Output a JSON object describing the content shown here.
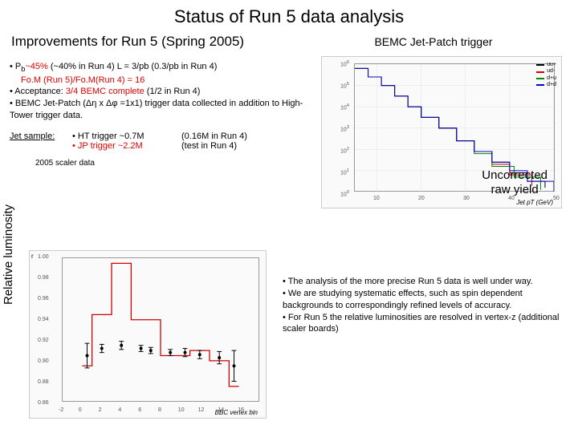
{
  "title": "Status of Run 5 data analysis",
  "subtitle": "Improvements for Run 5 (Spring 2005)",
  "bemc_title": "BEMC Jet-Patch trigger",
  "bullet1a": "• P",
  "bullet1b": "~45%",
  "bullet1c": "(~40% in Run 4)  L = 3/pb   (0.3/pb in Run 4)",
  "bullet1d": "Fo.M (Run 5)/Fo.M(Run 4) = 16",
  "bullet2a": "• Acceptance:",
  "bullet2b": "3/4 BEMC complete",
  "bullet2c": "(1/2 in Run 4)",
  "bullet3": "• BEMC Jet-Patch (Δη x Δφ =1x1) trigger data collected in addition to High-Tower trigger data.",
  "jet_label": "Jet sample:",
  "ht_trig": "• HT trigger ~0.7M",
  "ht_run4": "(0.16M in Run 4)",
  "jp_trig": "• JP trigger  ~2.2M",
  "jp_run4": "(test in Run 4)",
  "scaler_label": "2005 scaler data",
  "ylabel": "Relative luminosity",
  "raw_yield_l1": "Uncorrected",
  "raw_yield_l2": "raw yield",
  "rb1": "• The analysis of the more precise Run 5 data  is well under way.",
  "rb2": "• We are studying systematic effects, such as spin dependent backgrounds to correspondingly refined levels of accuracy.",
  "rb3": "• For Run 5 the relative luminosities are resolved in vertex-z (additional scaler boards)",
  "chart1": {
    "type": "line-log",
    "xlabel": "Jet pT (GeV)",
    "xmin": 5,
    "xmax": 50,
    "ymin_exp": 0,
    "ymax_exp": 6,
    "series": [
      {
        "name": "uu+",
        "color": "#000000",
        "points": [
          [
            5,
            5.8
          ],
          [
            8,
            5.4
          ],
          [
            11,
            5.0
          ],
          [
            14,
            4.5
          ],
          [
            17,
            4.0
          ],
          [
            20,
            3.5
          ],
          [
            24,
            3.0
          ],
          [
            28,
            2.4
          ],
          [
            32,
            1.9
          ],
          [
            36,
            1.4
          ],
          [
            40,
            0.9
          ],
          [
            44,
            0.5
          ],
          [
            48,
            0.2
          ]
        ]
      },
      {
        "name": "ud-",
        "color": "#d00000",
        "points": [
          [
            5,
            5.8
          ],
          [
            8,
            5.4
          ],
          [
            11,
            5.0
          ],
          [
            14,
            4.5
          ],
          [
            17,
            4.0
          ],
          [
            20,
            3.5
          ],
          [
            24,
            3.0
          ],
          [
            28,
            2.4
          ],
          [
            32,
            1.9
          ],
          [
            36,
            1.3
          ],
          [
            40,
            0.8
          ],
          [
            45,
            0.3
          ]
        ]
      },
      {
        "name": "d+u",
        "color": "#008800",
        "points": [
          [
            5,
            5.8
          ],
          [
            8,
            5.4
          ],
          [
            11,
            5.0
          ],
          [
            14,
            4.5
          ],
          [
            17,
            4.0
          ],
          [
            20,
            3.5
          ],
          [
            24,
            3.0
          ],
          [
            28,
            2.4
          ],
          [
            32,
            1.8
          ],
          [
            36,
            1.2
          ],
          [
            41,
            0.7
          ],
          [
            47,
            0.1
          ]
        ]
      },
      {
        "name": "d+d",
        "color": "#0000cc",
        "points": [
          [
            5,
            5.8
          ],
          [
            8,
            5.4
          ],
          [
            11,
            5.0
          ],
          [
            14,
            4.5
          ],
          [
            17,
            4.0
          ],
          [
            20,
            3.5
          ],
          [
            24,
            3.0
          ],
          [
            28,
            2.4
          ],
          [
            32,
            1.9
          ],
          [
            36,
            1.4
          ],
          [
            40,
            1.0
          ],
          [
            44,
            0.5
          ],
          [
            50,
            0.0
          ]
        ]
      }
    ]
  },
  "chart2": {
    "type": "step-errorbar",
    "xlabel": "BBC vertex bin",
    "xmin": -2,
    "xmax": 18,
    "ymin": 0.86,
    "ymax": 1.0,
    "yticks": [
      0.86,
      0.88,
      0.9,
      0.92,
      0.94,
      0.96,
      0.98,
      1.0
    ],
    "xticks": [
      -2,
      0,
      2,
      4,
      6,
      8,
      10,
      12,
      14,
      16
    ],
    "ylabel_top": "r",
    "step_red": {
      "color": "#d00000",
      "pts": [
        [
          0,
          0.895
        ],
        [
          1,
          0.895
        ],
        [
          1,
          0.945
        ],
        [
          3,
          0.945
        ],
        [
          3,
          0.995
        ],
        [
          5,
          0.995
        ],
        [
          5,
          0.94
        ],
        [
          8,
          0.94
        ],
        [
          8,
          0.905
        ],
        [
          11,
          0.905
        ],
        [
          11,
          0.91
        ],
        [
          13,
          0.91
        ],
        [
          13,
          0.9
        ],
        [
          15,
          0.9
        ],
        [
          15,
          0.875
        ],
        [
          16,
          0.875
        ]
      ]
    },
    "points_black": {
      "color": "#000000",
      "data": [
        [
          0.5,
          0.905,
          0.012
        ],
        [
          2,
          0.912,
          0.004
        ],
        [
          4,
          0.915,
          0.004
        ],
        [
          6,
          0.912,
          0.003
        ],
        [
          7,
          0.91,
          0.003
        ],
        [
          9,
          0.908,
          0.003
        ],
        [
          10.5,
          0.908,
          0.004
        ],
        [
          12,
          0.906,
          0.004
        ],
        [
          14,
          0.903,
          0.006
        ],
        [
          15.5,
          0.895,
          0.015
        ]
      ]
    }
  },
  "colors": {
    "red": "#d00000",
    "black": "#000000",
    "green": "#008800",
    "blue": "#0000cc",
    "grid": "#e0e0e0"
  }
}
